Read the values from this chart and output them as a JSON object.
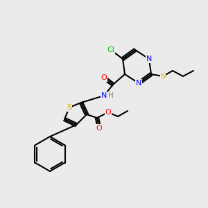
{
  "bg_color": "#ebebeb",
  "bond_color": "#000000",
  "atom_colors": {
    "N": "#0000ff",
    "S": "#ccaa00",
    "O": "#ff0000",
    "Cl": "#00cc00",
    "H": "#808080",
    "C": "#000000"
  },
  "figsize": [
    3.0,
    3.0
  ],
  "dpi": 100
}
